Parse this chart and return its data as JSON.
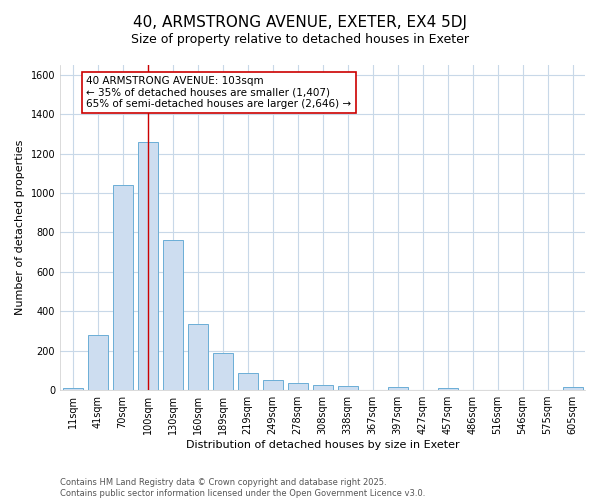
{
  "title1": "40, ARMSTRONG AVENUE, EXETER, EX4 5DJ",
  "title2": "Size of property relative to detached houses in Exeter",
  "xlabel": "Distribution of detached houses by size in Exeter",
  "ylabel": "Number of detached properties",
  "categories": [
    "11sqm",
    "41sqm",
    "70sqm",
    "100sqm",
    "130sqm",
    "160sqm",
    "189sqm",
    "219sqm",
    "249sqm",
    "278sqm",
    "308sqm",
    "338sqm",
    "367sqm",
    "397sqm",
    "427sqm",
    "457sqm",
    "486sqm",
    "516sqm",
    "546sqm",
    "575sqm",
    "605sqm"
  ],
  "values": [
    10,
    280,
    1040,
    1260,
    760,
    335,
    190,
    85,
    50,
    35,
    25,
    20,
    0,
    15,
    0,
    10,
    0,
    0,
    0,
    0,
    15
  ],
  "bar_color": "#cdddf0",
  "bar_edge_color": "#6baed6",
  "bar_width": 0.8,
  "red_line_index": 3,
  "annotation_text": "40 ARMSTRONG AVENUE: 103sqm\n← 35% of detached houses are smaller (1,407)\n65% of semi-detached houses are larger (2,646) →",
  "annotation_box_facecolor": "#ffffff",
  "annotation_box_edgecolor": "#cc0000",
  "ylim": [
    0,
    1650
  ],
  "yticks": [
    0,
    200,
    400,
    600,
    800,
    1000,
    1200,
    1400,
    1600
  ],
  "footnote": "Contains HM Land Registry data © Crown copyright and database right 2025.\nContains public sector information licensed under the Open Government Licence v3.0.",
  "bg_color": "#ffffff",
  "plot_bg_color": "#ffffff",
  "grid_color": "#c8d8e8",
  "title_fontsize": 11,
  "subtitle_fontsize": 9,
  "tick_fontsize": 7,
  "ylabel_fontsize": 8,
  "xlabel_fontsize": 8,
  "annotation_fontsize": 7.5,
  "footnote_fontsize": 6
}
